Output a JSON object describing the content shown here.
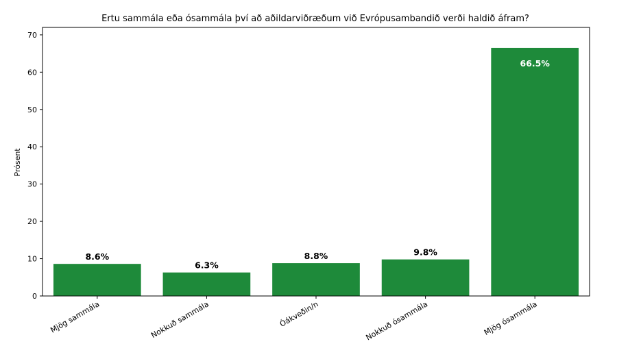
{
  "chart_data": {
    "type": "bar",
    "title": "Ertu sammála eða ósammála því að aðildarviðræðum við Evrópusambandið verði haldið áfram?",
    "xlabel": "",
    "ylabel": "Prósent",
    "categories": [
      "Mjög sammála",
      "Nokkuð sammála",
      "Óákveðin/n",
      "Nokkuð ósammála",
      "Mjög ósammála"
    ],
    "values": [
      8.6,
      6.3,
      8.8,
      9.8,
      66.5
    ],
    "data_labels": [
      "8.6%",
      "6.3%",
      "8.8%",
      "9.8%",
      "66.5%"
    ],
    "ylim": [
      0,
      72
    ],
    "yticks": [
      0,
      10,
      20,
      30,
      40,
      50,
      60,
      70
    ],
    "bar_color": "#1e8a3a",
    "label_color_outside": "#000000",
    "label_color_inside": "#ffffff",
    "grid": false
  }
}
